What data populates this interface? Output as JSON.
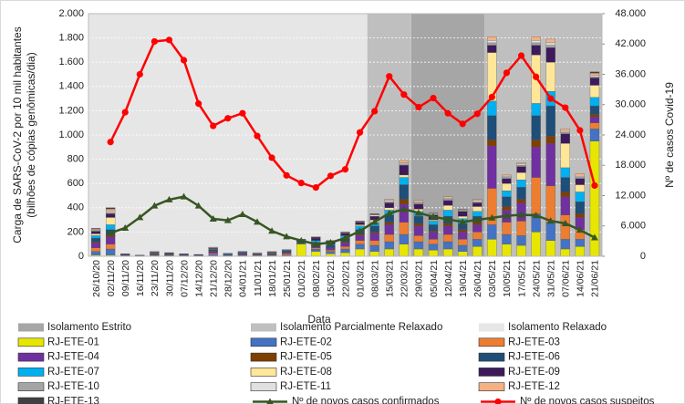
{
  "chart_data": {
    "type": "bar",
    "ylabel": [
      "Carga de SARS-CoV-2 por 10 mil habitantes",
      "(bilhões de cópias genômicas/dia)"
    ],
    "y2label": "Nº de casos Covid-19",
    "xlabel": "Data",
    "categories": [
      "26/10/20",
      "02/11/20",
      "09/11/20",
      "16/11/20",
      "23/11/20",
      "30/11/20",
      "07/12/20",
      "14/12/20",
      "21/12/20",
      "28/12/20",
      "04/01/21",
      "11/01/21",
      "18/01/21",
      "25/01/21",
      "01/02/21",
      "08/02/21",
      "15/02/21",
      "22/02/21",
      "01/03/21",
      "08/03/21",
      "15/03/21",
      "22/03/21",
      "29/03/21",
      "05/04/21",
      "12/04/21",
      "19/04/21",
      "26/04/21",
      "03/05/21",
      "10/05/21",
      "17/05/21",
      "24/05/21",
      "31/05/21",
      "07/06/21",
      "14/06/21",
      "21/06/21"
    ],
    "regions": [
      {
        "name": "Isolamento Estrito",
        "color": "#a6a6a6",
        "spans": [
          [
            "29/03/21",
            "26/04/21"
          ]
        ]
      },
      {
        "name": "Isolamento Parcialmente Relaxado",
        "color": "#bfbfbf",
        "spans": [
          [
            "08/03/21",
            "22/03/21"
          ],
          [
            "03/05/21",
            "21/06/21"
          ]
        ]
      },
      {
        "name": "Isolamento Relaxado",
        "color": "#e7e6e6",
        "spans": [
          [
            "26/10/20",
            "01/03/21"
          ]
        ]
      }
    ],
    "series": [
      {
        "name": "RJ-ETE-01",
        "color": "#e6e600",
        "values": [
          10,
          10,
          0,
          0,
          0,
          0,
          0,
          0,
          0,
          0,
          0,
          0,
          0,
          0,
          100,
          40,
          20,
          30,
          60,
          40,
          60,
          100,
          60,
          50,
          60,
          40,
          80,
          140,
          100,
          90,
          200,
          130,
          60,
          80,
          950
        ]
      },
      {
        "name": "RJ-ETE-02",
        "color": "#4472c4",
        "values": [
          30,
          50,
          5,
          0,
          5,
          5,
          5,
          0,
          15,
          5,
          5,
          5,
          5,
          10,
          10,
          20,
          20,
          30,
          40,
          50,
          60,
          80,
          60,
          50,
          60,
          50,
          60,
          120,
          80,
          80,
          150,
          150,
          80,
          60,
          100
        ]
      },
      {
        "name": "RJ-ETE-03",
        "color": "#ed7d31",
        "values": [
          30,
          40,
          0,
          0,
          5,
          0,
          0,
          0,
          10,
          0,
          5,
          5,
          5,
          10,
          5,
          10,
          10,
          20,
          30,
          40,
          60,
          100,
          50,
          40,
          60,
          50,
          60,
          300,
          100,
          120,
          300,
          300,
          200,
          80,
          50
        ]
      },
      {
        "name": "RJ-ETE-04",
        "color": "#7030a0",
        "values": [
          40,
          60,
          5,
          0,
          5,
          5,
          5,
          5,
          15,
          5,
          10,
          5,
          5,
          10,
          5,
          15,
          15,
          30,
          40,
          60,
          80,
          150,
          80,
          60,
          70,
          60,
          60,
          350,
          100,
          150,
          250,
          350,
          150,
          100,
          50
        ]
      },
      {
        "name": "RJ-ETE-05",
        "color": "#7f3f00",
        "values": [
          10,
          20,
          0,
          0,
          5,
          5,
          0,
          0,
          5,
          0,
          5,
          0,
          5,
          5,
          0,
          10,
          5,
          10,
          10,
          10,
          20,
          40,
          20,
          10,
          20,
          20,
          20,
          50,
          30,
          30,
          60,
          60,
          40,
          30,
          20
        ]
      },
      {
        "name": "RJ-ETE-06",
        "color": "#1f4e79",
        "values": [
          30,
          40,
          5,
          5,
          5,
          5,
          5,
          5,
          10,
          5,
          5,
          5,
          5,
          10,
          10,
          20,
          20,
          30,
          40,
          50,
          60,
          120,
          60,
          50,
          60,
          50,
          50,
          200,
          80,
          100,
          200,
          250,
          120,
          100,
          70
        ]
      },
      {
        "name": "RJ-ETE-07",
        "color": "#00b0f0",
        "values": [
          20,
          40,
          0,
          0,
          5,
          5,
          0,
          0,
          5,
          5,
          5,
          0,
          5,
          5,
          5,
          15,
          10,
          20,
          30,
          30,
          40,
          60,
          40,
          30,
          50,
          40,
          40,
          120,
          50,
          60,
          100,
          120,
          80,
          80,
          70
        ]
      },
      {
        "name": "RJ-ETE-08",
        "color": "#ffe699",
        "values": [
          15,
          60,
          0,
          0,
          0,
          0,
          0,
          0,
          0,
          0,
          0,
          0,
          0,
          0,
          0,
          0,
          0,
          0,
          10,
          20,
          20,
          20,
          20,
          10,
          40,
          20,
          40,
          400,
          60,
          60,
          400,
          240,
          200,
          60,
          100
        ]
      },
      {
        "name": "RJ-ETE-09",
        "color": "#3c1a5b",
        "values": [
          20,
          30,
          5,
          5,
          5,
          5,
          5,
          5,
          5,
          5,
          5,
          5,
          5,
          5,
          5,
          20,
          20,
          20,
          20,
          30,
          40,
          80,
          40,
          40,
          40,
          40,
          30,
          60,
          40,
          50,
          80,
          120,
          80,
          50,
          60
        ]
      },
      {
        "name": "RJ-ETE-10",
        "color": "#a5a5a5",
        "values": [
          5,
          10,
          0,
          0,
          0,
          0,
          0,
          0,
          5,
          0,
          0,
          0,
          0,
          0,
          0,
          0,
          0,
          0,
          0,
          0,
          10,
          10,
          10,
          10,
          10,
          10,
          10,
          20,
          10,
          10,
          20,
          20,
          10,
          10,
          10
        ]
      },
      {
        "name": "RJ-ETE-11",
        "color": "#e0e0e0",
        "values": [
          5,
          10,
          0,
          0,
          0,
          0,
          0,
          0,
          0,
          0,
          0,
          5,
          0,
          0,
          0,
          0,
          0,
          0,
          0,
          10,
          10,
          10,
          10,
          5,
          10,
          5,
          10,
          20,
          10,
          10,
          20,
          20,
          10,
          10,
          10
        ]
      },
      {
        "name": "RJ-ETE-12",
        "color": "#f4b183",
        "values": [
          10,
          20,
          0,
          0,
          5,
          0,
          0,
          0,
          5,
          0,
          0,
          0,
          5,
          0,
          0,
          0,
          0,
          5,
          5,
          5,
          10,
          20,
          10,
          5,
          10,
          5,
          10,
          30,
          10,
          10,
          30,
          30,
          20,
          20,
          20
        ]
      },
      {
        "name": "RJ-ETE-13",
        "color": "#404040",
        "values": [
          5,
          10,
          0,
          0,
          0,
          0,
          0,
          0,
          0,
          0,
          0,
          0,
          0,
          0,
          0,
          10,
          10,
          5,
          5,
          5,
          0,
          0,
          0,
          0,
          0,
          0,
          0,
          0,
          0,
          0,
          0,
          0,
          0,
          0,
          10
        ]
      }
    ],
    "lines": [
      {
        "name": "Nº de novos casos confirmados",
        "color": "#375623",
        "marker": "triangle",
        "axis": "y2",
        "values": [
          null,
          4600,
          5600,
          7700,
          10000,
          11200,
          11800,
          10000,
          7400,
          7100,
          8300,
          6800,
          5000,
          3900,
          3100,
          2400,
          2700,
          3600,
          5000,
          6800,
          8500,
          9300,
          8600,
          7800,
          7300,
          6800,
          7200,
          7600,
          8000,
          8200,
          8100,
          7000,
          6500,
          5200,
          3700
        ]
      },
      {
        "name": "Nº de novos casos suspeitos",
        "color": "#ff0000",
        "marker": "circle",
        "axis": "y2",
        "values": [
          null,
          22600,
          28500,
          36000,
          42500,
          42800,
          38800,
          30200,
          25800,
          27300,
          28300,
          23800,
          19500,
          16000,
          14500,
          13600,
          15900,
          17200,
          24500,
          28700,
          35600,
          32000,
          29500,
          31300,
          28300,
          26200,
          28200,
          31500,
          36300,
          39700,
          35500,
          31200,
          29400,
          24900,
          14000
        ]
      }
    ],
    "ylim": [
      0,
      2000
    ],
    "yticks": [
      0,
      {
        "value": 200,
        "label": "200"
      },
      {
        "value": 400,
        "label": "400"
      },
      {
        "value": 600,
        "label": "600"
      },
      {
        "value": 800,
        "label": "800"
      },
      {
        "value": 1000,
        "label": "1.000"
      },
      {
        "value": 1200,
        "label": "1.200"
      },
      {
        "value": 1400,
        "label": "1.400"
      },
      {
        "value": 1600,
        "label": "1.600"
      },
      {
        "value": 1800,
        "label": "1.800"
      },
      {
        "value": 2000,
        "label": "2.000"
      }
    ],
    "y2lim": [
      0,
      48000
    ],
    "y2ticks": [
      0,
      {
        "value": 6000,
        "label": "6.000"
      },
      {
        "value": 12000,
        "label": "12.000"
      },
      {
        "value": 18000,
        "label": "18.000"
      },
      {
        "value": 24000,
        "label": "24.000"
      },
      {
        "value": 30000,
        "label": "30.000"
      },
      {
        "value": 36000,
        "label": "36.000"
      },
      {
        "value": 42000,
        "label": "42.000"
      },
      {
        "value": 48000,
        "label": "48.000"
      }
    ],
    "grid": true
  }
}
